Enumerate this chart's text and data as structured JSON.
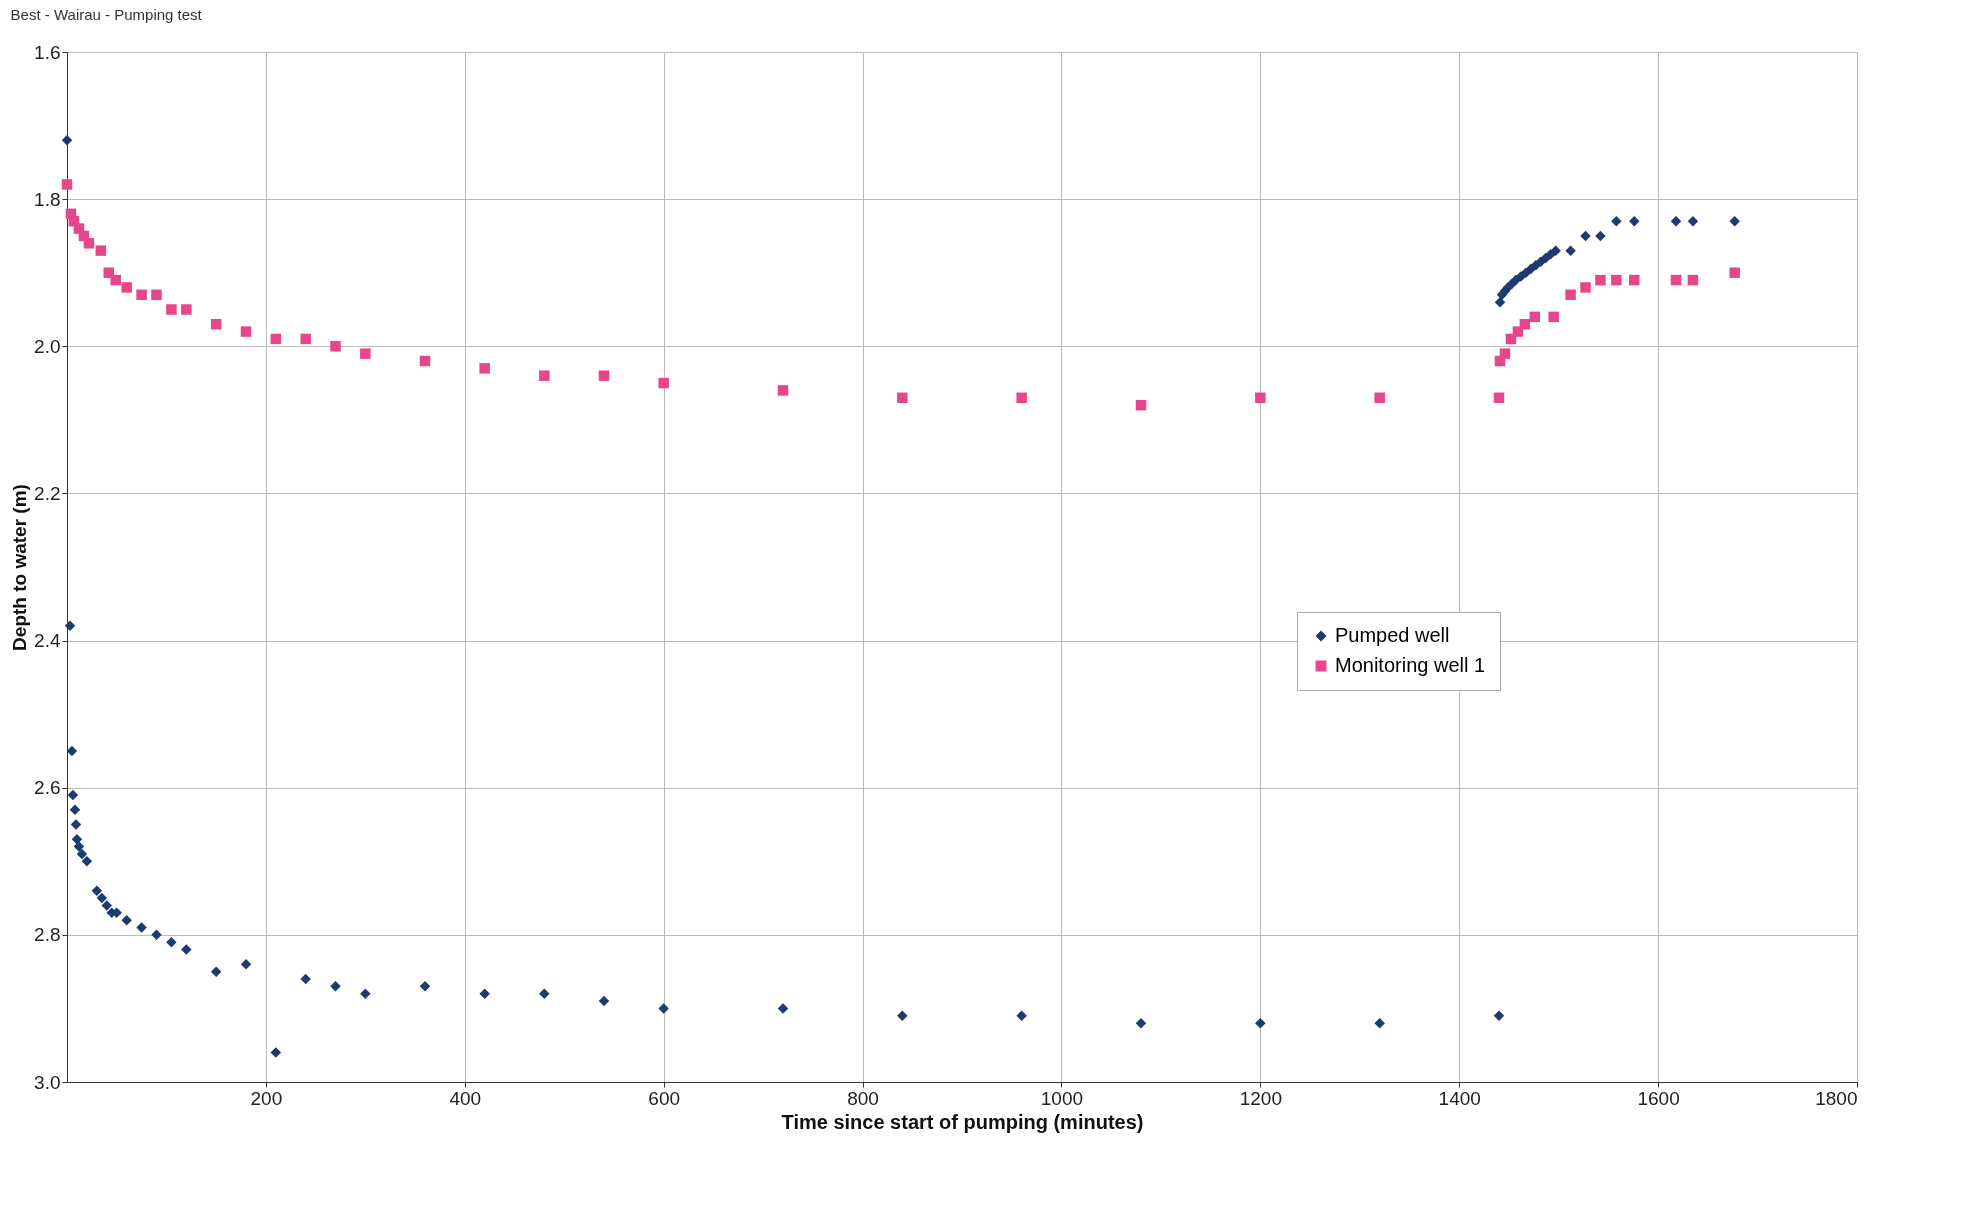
{
  "chart_data": {
    "type": "scatter",
    "title": "Best - Wairau - Pumping test",
    "xlabel": "Time since start of pumping (minutes)",
    "ylabel": "Depth to water (m)",
    "xlim": [
      0,
      1800
    ],
    "xticks": [
      200,
      400,
      600,
      800,
      1000,
      1200,
      1400,
      1600,
      1800
    ],
    "ylim": [
      3.0,
      1.6
    ],
    "yticks": [
      {
        "value": 1.6,
        "label": "1.6"
      },
      {
        "value": 1.8,
        "label": "1.8"
      },
      {
        "value": 2.0,
        "label": "2.0"
      },
      {
        "value": 2.2,
        "label": "2.2"
      },
      {
        "value": 2.4,
        "label": "2.4"
      },
      {
        "value": 2.6,
        "label": "2.6"
      },
      {
        "value": 2.8,
        "label": "2.8"
      },
      {
        "value": 3.0,
        "label": "3.0"
      }
    ],
    "grid": true,
    "legend": "right",
    "series": [
      {
        "name": "Pumped well",
        "color": "#1f3a6e",
        "marker": "diamond",
        "x": [
          0,
          3,
          5,
          6,
          8,
          9,
          10,
          12,
          15,
          20,
          30,
          35,
          40,
          45,
          50,
          60,
          75,
          90,
          105,
          120,
          150,
          180,
          210,
          240,
          270,
          300,
          360,
          420,
          480,
          540,
          600,
          720,
          840,
          960,
          1080,
          1200,
          1320,
          1440,
          1441,
          1443,
          1446,
          1449,
          1453,
          1457,
          1462,
          1467,
          1472,
          1477,
          1482,
          1487,
          1492,
          1497,
          1512,
          1527,
          1542,
          1558,
          1576,
          1618,
          1635,
          1677
        ],
        "values": [
          1.72,
          2.38,
          2.55,
          2.61,
          2.63,
          2.65,
          2.67,
          2.68,
          2.69,
          2.7,
          2.74,
          2.75,
          2.76,
          2.77,
          2.77,
          2.78,
          2.79,
          2.8,
          2.81,
          2.82,
          2.85,
          2.84,
          2.96,
          2.86,
          2.87,
          2.88,
          2.87,
          2.88,
          2.88,
          2.89,
          2.9,
          2.9,
          2.91,
          2.91,
          2.92,
          2.92,
          2.92,
          2.91,
          1.94,
          1.93,
          1.925,
          1.92,
          1.915,
          1.91,
          1.905,
          1.9,
          1.895,
          1.89,
          1.885,
          1.88,
          1.875,
          1.87,
          1.87,
          1.85,
          1.85,
          1.83,
          1.83,
          1.83,
          1.83,
          1.83
        ]
      },
      {
        "name": "Monitoring well 1",
        "color": "#e8468a",
        "marker": "square",
        "x": [
          0,
          4,
          7,
          12,
          17,
          22,
          34,
          42,
          49,
          60,
          75,
          90,
          105,
          120,
          150,
          180,
          210,
          240,
          270,
          300,
          360,
          420,
          480,
          540,
          600,
          720,
          840,
          960,
          1080,
          1200,
          1320,
          1440,
          1441,
          1446,
          1452,
          1459,
          1466,
          1476,
          1495,
          1512,
          1527,
          1542,
          1558,
          1576,
          1618,
          1635,
          1677
        ],
        "values": [
          1.78,
          1.82,
          1.83,
          1.84,
          1.85,
          1.86,
          1.87,
          1.9,
          1.91,
          1.92,
          1.93,
          1.93,
          1.95,
          1.95,
          1.97,
          1.98,
          1.99,
          1.99,
          2.0,
          2.01,
          2.02,
          2.03,
          2.04,
          2.04,
          2.05,
          2.06,
          2.07,
          2.07,
          2.08,
          2.07,
          2.07,
          2.07,
          2.02,
          2.01,
          1.99,
          1.98,
          1.97,
          1.96,
          1.96,
          1.93,
          1.92,
          1.91,
          1.91,
          1.91,
          1.91,
          1.91,
          1.9
        ]
      }
    ]
  }
}
